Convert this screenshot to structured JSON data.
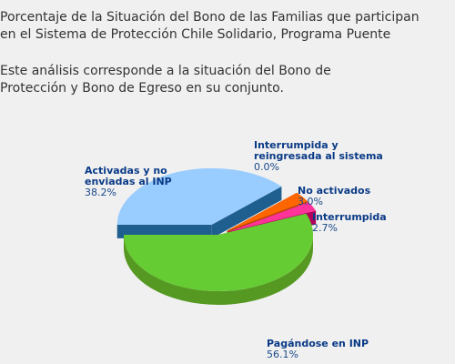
{
  "header": {
    "title_line1": "Porcentaje de la Situación del Bono de las Familias que participan",
    "title_line2": "en el Sistema de Protección Chile Solidario, Programa Puente",
    "subtitle_line1": "Este análisis corresponde a la situación del Bono de",
    "subtitle_line2": "Protección y Bono de Egreso en su conjunto."
  },
  "chart_data": {
    "type": "pie",
    "title": "Porcentaje de la Situación del Bono de las Familias que participan en el Sistema de Protección Chile Solidario, Programa Puente",
    "subtitle": "Este análisis corresponde a la situación del Bono de Protección y Bono de Egreso en su conjunto.",
    "style": "3d-exploded",
    "slices": [
      {
        "label": "Pagándose en INP",
        "value": 56.1,
        "pct_text": "56.1%",
        "color": "#66cc33",
        "side": "#559922"
      },
      {
        "label": "Activadas y no enviadas al INP",
        "value": 38.2,
        "pct_text": "38.2%",
        "color": "#99ccff",
        "side": "#1f5f8f"
      },
      {
        "label": "Interrumpida y reingresada al sistema",
        "value": 0.0,
        "pct_text": "0.0%",
        "color": "#999999",
        "side": "#666666"
      },
      {
        "label": "No activados",
        "value": 3.0,
        "pct_text": "3.0%",
        "color": "#ff6600",
        "side": "#b34700"
      },
      {
        "label": "Interrumpida",
        "value": 2.7,
        "pct_text": "2.7%",
        "color": "#ff3399",
        "side": "#b3005c"
      }
    ]
  }
}
